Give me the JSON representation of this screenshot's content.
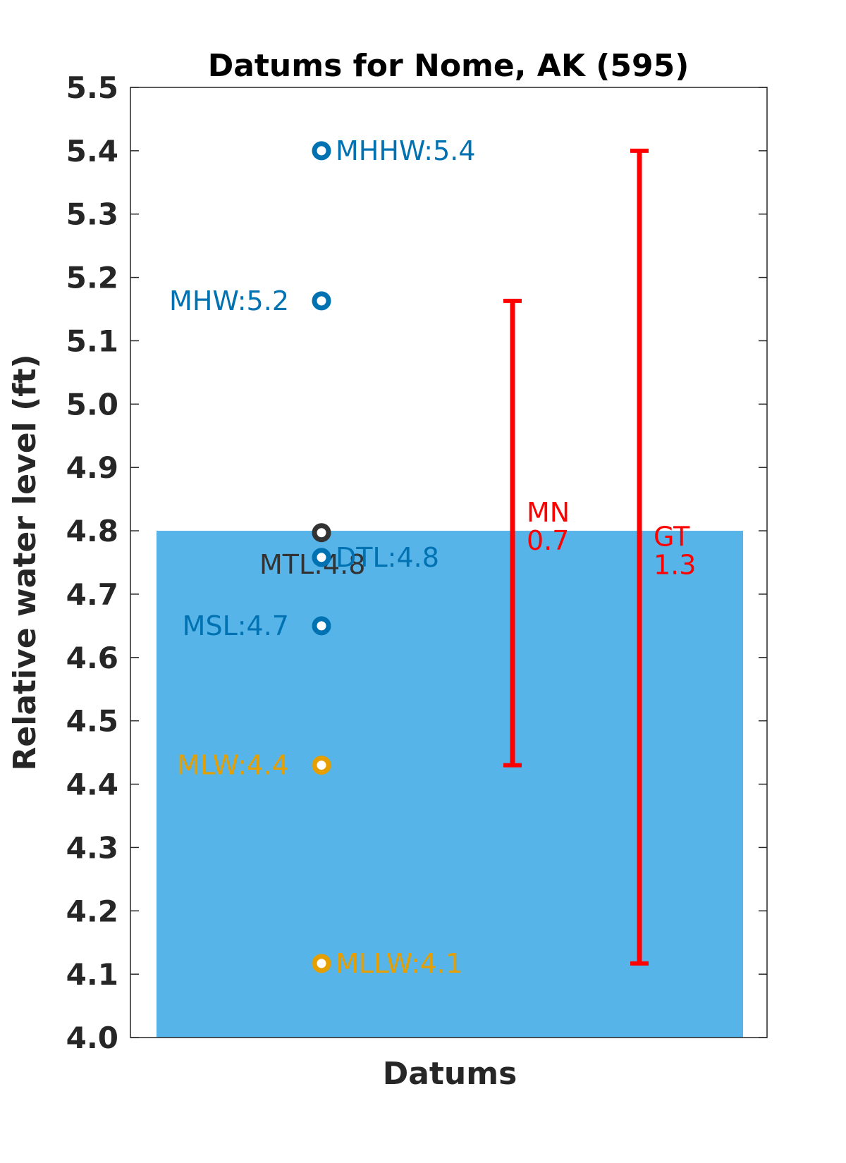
{
  "chart_data": {
    "type": "scatter",
    "title": "Datums for Nome, AK (595)",
    "xlabel": "Datums",
    "ylabel": "Relative water level (ft)",
    "ylim": [
      4.0,
      5.5
    ],
    "yticks": [
      "4.0",
      "4.1",
      "4.2",
      "4.3",
      "4.4",
      "4.5",
      "4.6",
      "4.7",
      "4.8",
      "4.9",
      "5.0",
      "5.1",
      "5.2",
      "5.3",
      "5.4",
      "5.5"
    ],
    "grid": false,
    "background_bar": {
      "level": 4.8,
      "color": "#56B4E9"
    },
    "datums": [
      {
        "name": "MHHW",
        "value": 5.4,
        "label": "MHHW:5.4",
        "color": "#0072B2",
        "label_side": "right"
      },
      {
        "name": "MHW",
        "value": 5.163,
        "label": "MHW:5.2",
        "color": "#0072B2",
        "label_side": "left"
      },
      {
        "name": "MTL",
        "value": 4.797,
        "label": "MTL:4.8",
        "color": "#333333",
        "label_side": "below"
      },
      {
        "name": "DTL",
        "value": 4.758,
        "label": "DTL:4.8",
        "color": "#0072B2",
        "label_side": "right"
      },
      {
        "name": "MSL",
        "value": 4.65,
        "label": "MSL:4.7",
        "color": "#0072B2",
        "label_side": "left"
      },
      {
        "name": "MLW",
        "value": 4.43,
        "label": "MLW:4.4",
        "color": "#E69F00",
        "label_side": "left"
      },
      {
        "name": "MLLW",
        "value": 4.117,
        "label": "MLLW:4.1",
        "color": "#E69F00",
        "label_side": "right"
      }
    ],
    "ranges": [
      {
        "name": "MN",
        "low": 4.43,
        "high": 5.163,
        "label_name": "MN",
        "label_value": "0.7",
        "color": "#FF0000"
      },
      {
        "name": "GT",
        "low": 4.117,
        "high": 5.4,
        "label_name": "GT",
        "label_value": "1.3",
        "color": "#FF0000"
      }
    ]
  }
}
